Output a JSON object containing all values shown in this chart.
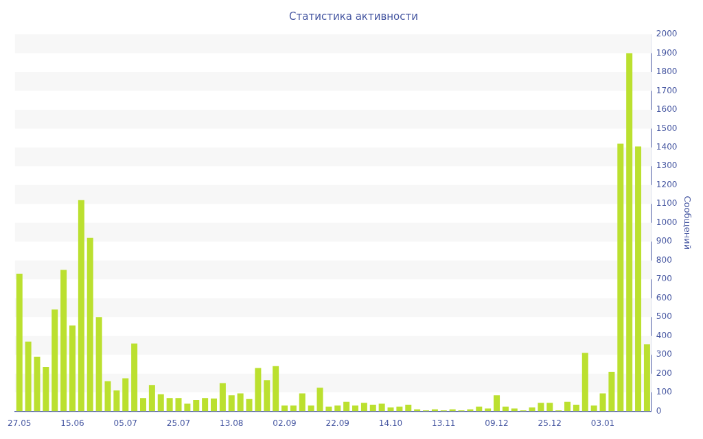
{
  "chart_data": {
    "type": "bar",
    "title": "Статистика активности",
    "ylabel": "Сообщений",
    "categories": [
      "27.05",
      null,
      null,
      null,
      null,
      null,
      "15.06",
      null,
      null,
      null,
      null,
      null,
      "05.07",
      null,
      null,
      null,
      null,
      null,
      "25.07",
      null,
      null,
      null,
      null,
      null,
      "13.08",
      null,
      null,
      null,
      null,
      null,
      "02.09",
      null,
      null,
      null,
      null,
      null,
      "22.09",
      null,
      null,
      null,
      null,
      null,
      "14.10",
      null,
      null,
      null,
      null,
      null,
      "13.11",
      null,
      null,
      null,
      null,
      null,
      "09.12",
      null,
      null,
      null,
      null,
      null,
      "25.12",
      null,
      null,
      null,
      null,
      null,
      "03.01",
      null,
      null,
      null,
      null,
      null
    ],
    "values": [
      730,
      370,
      290,
      235,
      540,
      750,
      455,
      1120,
      920,
      500,
      160,
      110,
      175,
      360,
      70,
      140,
      90,
      70,
      70,
      40,
      60,
      70,
      68,
      150,
      85,
      95,
      65,
      230,
      165,
      240,
      30,
      30,
      95,
      30,
      125,
      25,
      30,
      50,
      30,
      45,
      35,
      40,
      20,
      25,
      35,
      10,
      5,
      10,
      5,
      10,
      5,
      10,
      25,
      15,
      85,
      25,
      15,
      5,
      20,
      45,
      45,
      5,
      50,
      35,
      310,
      30,
      95,
      210,
      1420,
      1900,
      1405,
      355
    ],
    "color": "#bbe02f",
    "ylim": [
      0,
      2000
    ],
    "yticks": [
      0,
      100,
      200,
      300,
      400,
      500,
      600,
      700,
      800,
      900,
      1000,
      1100,
      1200,
      1300,
      1400,
      1500,
      1600,
      1700,
      1800,
      1900,
      2000
    ]
  }
}
